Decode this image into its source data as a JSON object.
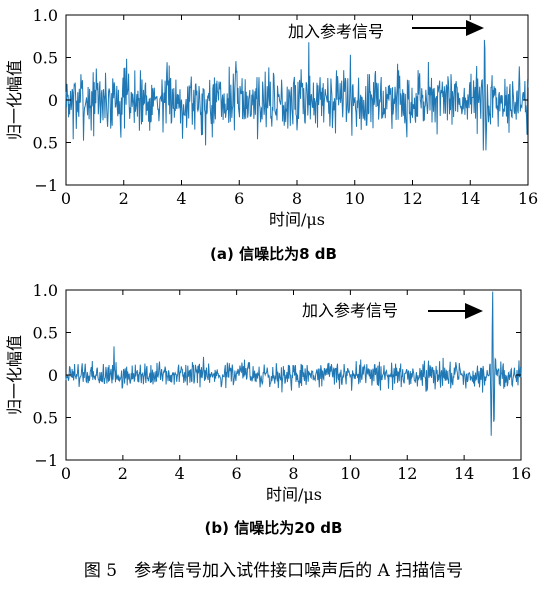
{
  "figure_caption": "图 5　参考信号加入试件接口噪声后的 A 扫描信号",
  "chart_data": [
    {
      "type": "line",
      "caption": "(a) 信噪比为8 dB",
      "xlabel": "时间/μs",
      "ylabel": "归一化幅值",
      "xlim": [
        0,
        16
      ],
      "ylim": [
        -1,
        1
      ],
      "xticks": [
        "0",
        "2",
        "4",
        "6",
        "8",
        "10",
        "12",
        "14",
        "16"
      ],
      "yticks": [
        "1.0",
        "0.5",
        "0",
        "0.5",
        "−1"
      ],
      "annotation": "加入参考信号",
      "series_color": "#1f77b4",
      "signal": {
        "duration_us": 16,
        "noise_amplitude": 0.3,
        "reference_pulse_time_us": 14.5,
        "reference_pulse_peak": 0.95
      }
    },
    {
      "type": "line",
      "caption": "(b) 信噪比为20 dB",
      "xlabel": "时间/μs",
      "ylabel": "归一化幅值",
      "xlim": [
        0,
        16
      ],
      "ylim": [
        -1,
        1
      ],
      "xticks": [
        "0",
        "2",
        "4",
        "6",
        "8",
        "10",
        "12",
        "14",
        "16"
      ],
      "yticks": [
        "1.0",
        "0.5",
        "0",
        "0.5",
        "−1"
      ],
      "annotation": "加入参考信号",
      "series_color": "#1f77b4",
      "signal": {
        "duration_us": 16,
        "noise_amplitude": 0.12,
        "reference_pulse_time_us": 15,
        "reference_pulse_peak": 1.0,
        "reference_pulse_trough": -0.97
      }
    }
  ]
}
